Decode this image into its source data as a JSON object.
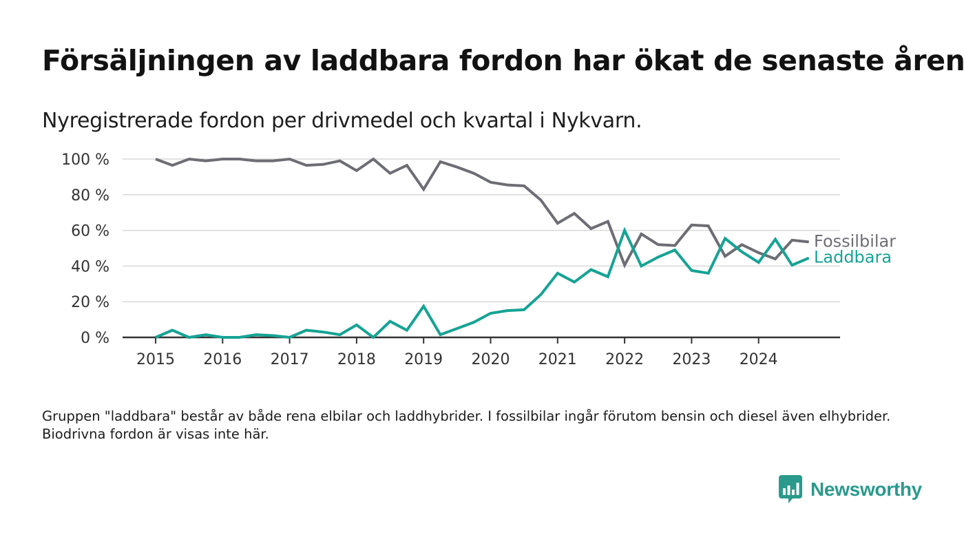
{
  "header": {
    "title": "Försäljningen av laddbara fordon har ökat de senaste åren",
    "subtitle": "Nyregistrerade fordon per drivmedel och kvartal i Nykvarn."
  },
  "footer": {
    "note": "Gruppen \"laddbara\" består av både rena elbilar och laddhybrider. I fossilbilar ingår förutom bensin och diesel även elhybrider. Biodrivna fordon är visas inte här.",
    "brand": "Newsworthy",
    "brand_icon": "bar-chart-speech-bubble-icon"
  },
  "colors": {
    "fossil": "#6d6d74",
    "laddbara": "#16a394",
    "grid": "#d9d9d9",
    "axis": "#333333",
    "brand": "#2a9a8c"
  },
  "chart_data": {
    "type": "line",
    "title": "Försäljningen av laddbara fordon har ökat de senaste åren",
    "subtitle": "Nyregistrerade fordon per drivmedel och kvartal i Nykvarn.",
    "xlabel": "",
    "ylabel": "",
    "ylim": [
      0,
      100
    ],
    "yticks": [
      0,
      20,
      40,
      60,
      80,
      100
    ],
    "ytick_labels": [
      "0 %",
      "20 %",
      "40 %",
      "60 %",
      "80 %",
      "100 %"
    ],
    "xticks": [
      "2015",
      "2016",
      "2017",
      "2018",
      "2019",
      "2020",
      "2021",
      "2022",
      "2023",
      "2024"
    ],
    "x": [
      "2015 K1",
      "2015 K2",
      "2015 K3",
      "2015 K4",
      "2016 K1",
      "2016 K2",
      "2016 K3",
      "2016 K4",
      "2017 K1",
      "2017 K2",
      "2017 K3",
      "2017 K4",
      "2018 K1",
      "2018 K2",
      "2018 K3",
      "2018 K4",
      "2019 K1",
      "2019 K2",
      "2019 K3",
      "2019 K4",
      "2020 K1",
      "2020 K2",
      "2020 K3",
      "2020 K4",
      "2021 K1",
      "2021 K2",
      "2021 K3",
      "2021 K4",
      "2022 K1",
      "2022 K2",
      "2022 K3",
      "2022 K4",
      "2023 K1",
      "2023 K2",
      "2023 K3",
      "2023 K4",
      "2024 K1",
      "2024 K2",
      "2024 K3",
      "2024 K4"
    ],
    "series": [
      {
        "name": "Fossilbilar",
        "color": "#6d6d74",
        "values": [
          100,
          96.5,
          100,
          99,
          100,
          100,
          99,
          99,
          100,
          96.5,
          97,
          99,
          93.5,
          100,
          92,
          96.5,
          83,
          98.5,
          95.5,
          92,
          87,
          85.5,
          85,
          77,
          64,
          69.5,
          61,
          65,
          40.5,
          58,
          52,
          51.5,
          63,
          62.5,
          45.5,
          52,
          47.5,
          44,
          54.5,
          53.5
        ]
      },
      {
        "name": "Laddbara",
        "color": "#16a394",
        "values": [
          0,
          4,
          0,
          1.5,
          0,
          0,
          1.5,
          1,
          0,
          4,
          3,
          1.5,
          7,
          0,
          9,
          4,
          17.5,
          1.5,
          5,
          8.5,
          13.5,
          15,
          15.5,
          24,
          36,
          31,
          38,
          34,
          60,
          40,
          45,
          49,
          37.5,
          36,
          55.5,
          48,
          42,
          55,
          40.5,
          44.5
        ]
      }
    ],
    "legend": "direct labels at line ends, right"
  }
}
